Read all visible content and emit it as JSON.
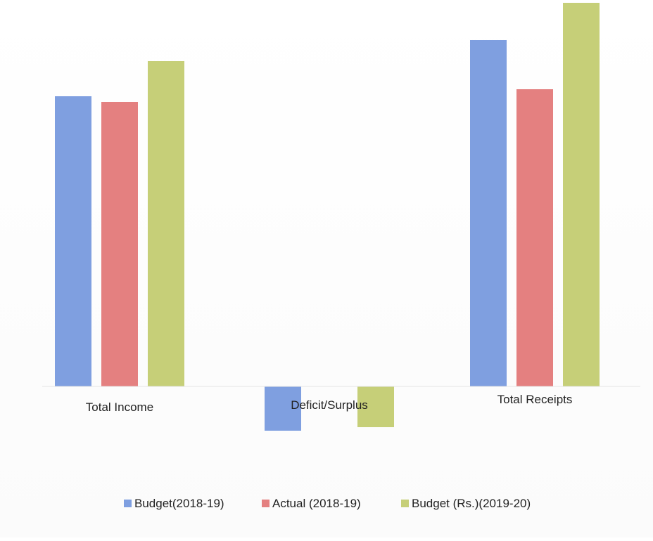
{
  "chart_data": {
    "type": "bar",
    "categories": [
      "Total Income",
      "Deficit/Surplus",
      "Total Receipts"
    ],
    "series": [
      {
        "name": "Budget(2018-19)",
        "values": [
          41.3,
          -6.3,
          49.3
        ],
        "color": "#7f9fe0"
      },
      {
        "name": "Actual (2018-19)",
        "values": [
          40.5,
          0.0,
          42.3
        ],
        "color": "#e48080"
      },
      {
        "name": "Budget (Rs.)(2019-20)",
        "values": [
          46.3,
          -5.8,
          54.6
        ],
        "color": "#c6cf78"
      }
    ],
    "ylim": [
      -8,
      56
    ],
    "legend_position": "bottom",
    "grid": false
  }
}
